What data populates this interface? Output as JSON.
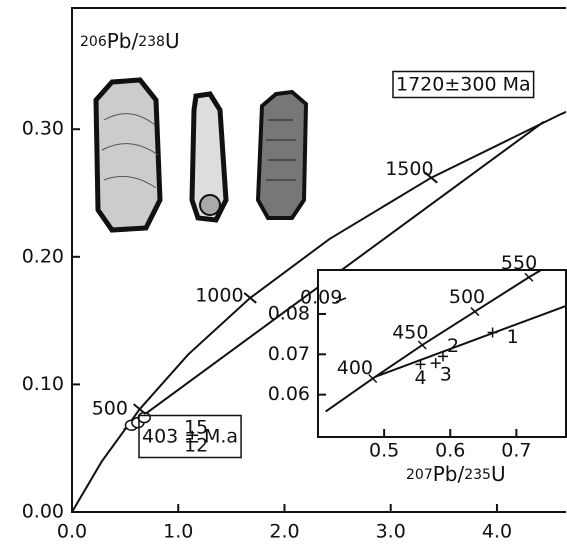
{
  "chart_data": [
    {
      "type": "line",
      "y_label_parts": [
        "206",
        "Pb/",
        "238",
        "U"
      ],
      "xlim": [
        0,
        4.65
      ],
      "ylim": [
        0,
        0.395
      ],
      "xticks": [
        {
          "value": 0,
          "label": "0.0"
        },
        {
          "value": 1,
          "label": "1.0"
        },
        {
          "value": 2,
          "label": "2.0"
        },
        {
          "value": 3,
          "label": "3.0"
        },
        {
          "value": 4,
          "label": "4.0"
        }
      ],
      "yticks": [
        {
          "value": 0,
          "label": "0.00"
        },
        {
          "value": 0.1,
          "label": "0.10"
        },
        {
          "value": 0.2,
          "label": "0.20"
        },
        {
          "value": 0.3,
          "label": "0.30"
        }
      ],
      "series": [
        {
          "color": "#111111",
          "x": [
            0,
            0.2792,
            0.6372,
            1.093,
            1.6774,
            2.4247,
            3.3813,
            4.6042,
            4.8869
          ],
          "values": [
            0,
            0.0395,
            0.0806,
            0.1234,
            0.1678,
            0.214,
            0.262,
            0.3119,
            0.3221
          ]
        },
        {
          "color": "#111111",
          "x": [
            0.488,
            4.44
          ],
          "values": [
            0.0645,
            0.3058
          ]
        }
      ],
      "points": {
        "x": [
          0.56,
          0.62,
          0.68
        ],
        "values": [
          0.068,
          0.07,
          0.074
        ]
      },
      "age_labels": [
        "500",
        "1000",
        "1500"
      ],
      "upper_intercept": "1720±300 Ma",
      "lower_intercept": {
        "age": "403 ±",
        "plus": "15",
        "minus": "12",
        "unit": "M.a"
      }
    },
    {
      "type": "line",
      "x_label_parts": [
        "207",
        "Pb/",
        "235",
        "U"
      ],
      "xlim": [
        0.4,
        0.775
      ],
      "ylim": [
        0.0495,
        0.0909
      ],
      "xticks": [
        0.5,
        0.6,
        0.7
      ],
      "yticks": [
        0.06,
        0.07,
        0.08
      ],
      "series": [
        {
          "color": "#111111",
          "x": [
            0.4116,
            0.4828,
            0.5576,
            0.6372,
            0.7189,
            0.8056
          ],
          "values": [
            0.0558,
            0.064,
            0.0723,
            0.0806,
            0.0891,
            0.0975
          ]
        },
        {
          "color": "#111111",
          "x": [
            0.488,
            0.78
          ],
          "values": [
            0.0645,
            0.0823
          ]
        }
      ],
      "points": {
        "x": [
          0.664,
          0.589,
          0.578,
          0.555
        ],
        "values": [
          0.0754,
          0.0695,
          0.0678,
          0.0675
        ],
        "labels": [
          "1",
          "2",
          "3",
          "4"
        ]
      },
      "age_labels": [
        "400",
        "450",
        "500",
        "550"
      ],
      "annotation": "0.09"
    }
  ]
}
